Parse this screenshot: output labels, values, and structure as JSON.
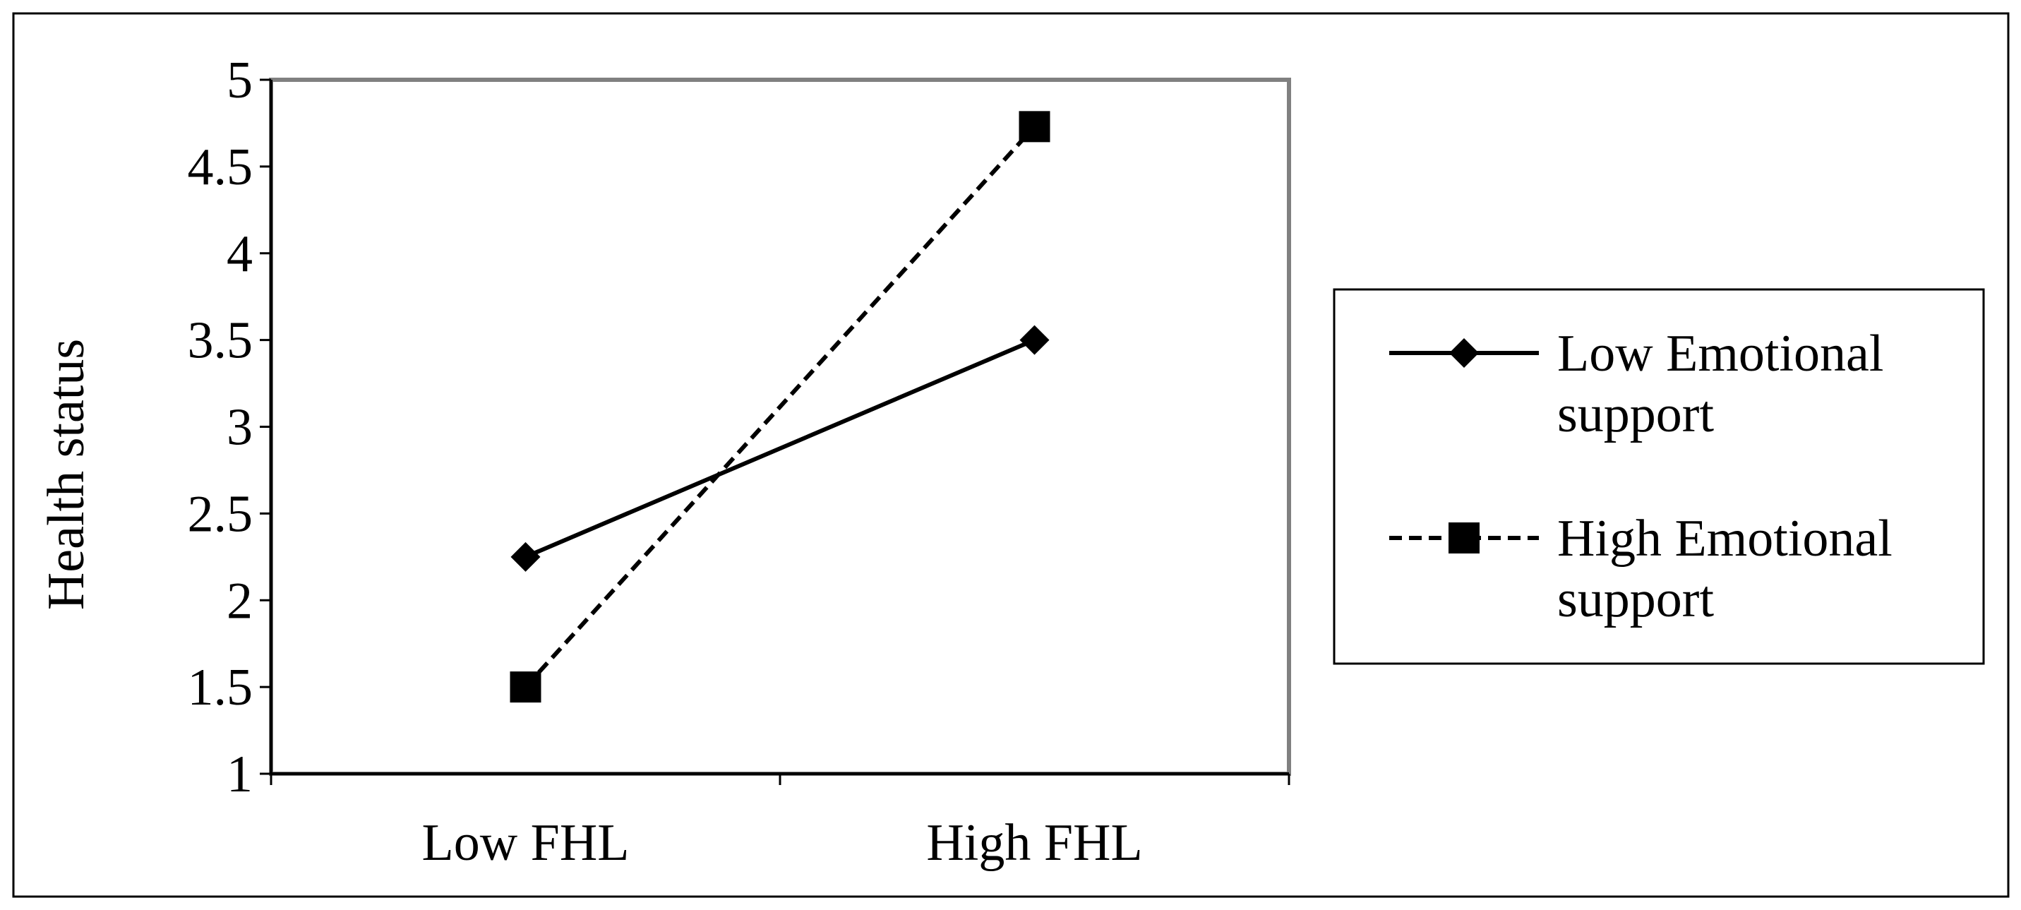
{
  "chart_data": {
    "type": "line",
    "title": "",
    "xlabel": "",
    "ylabel": "Health status",
    "categories": [
      "Low FHL",
      "High FHL"
    ],
    "ylim": [
      1,
      5
    ],
    "yticks": [
      "1",
      "1.5",
      "2",
      "2.5",
      "3",
      "3.5",
      "4",
      "4.5",
      "5"
    ],
    "grid": false,
    "legend_position": "right",
    "series": [
      {
        "name_lines": [
          "Low Emotional",
          "support"
        ],
        "values": [
          2.25,
          3.5
        ],
        "line_style": "solid",
        "marker": "diamond",
        "color": "#000000"
      },
      {
        "name_lines": [
          "High Emotional",
          "support"
        ],
        "values": [
          1.5,
          4.73
        ],
        "line_style": "dashed",
        "marker": "square",
        "color": "#000000"
      }
    ],
    "colors": {
      "plot_border": "#808080",
      "frame": "#000000"
    }
  }
}
